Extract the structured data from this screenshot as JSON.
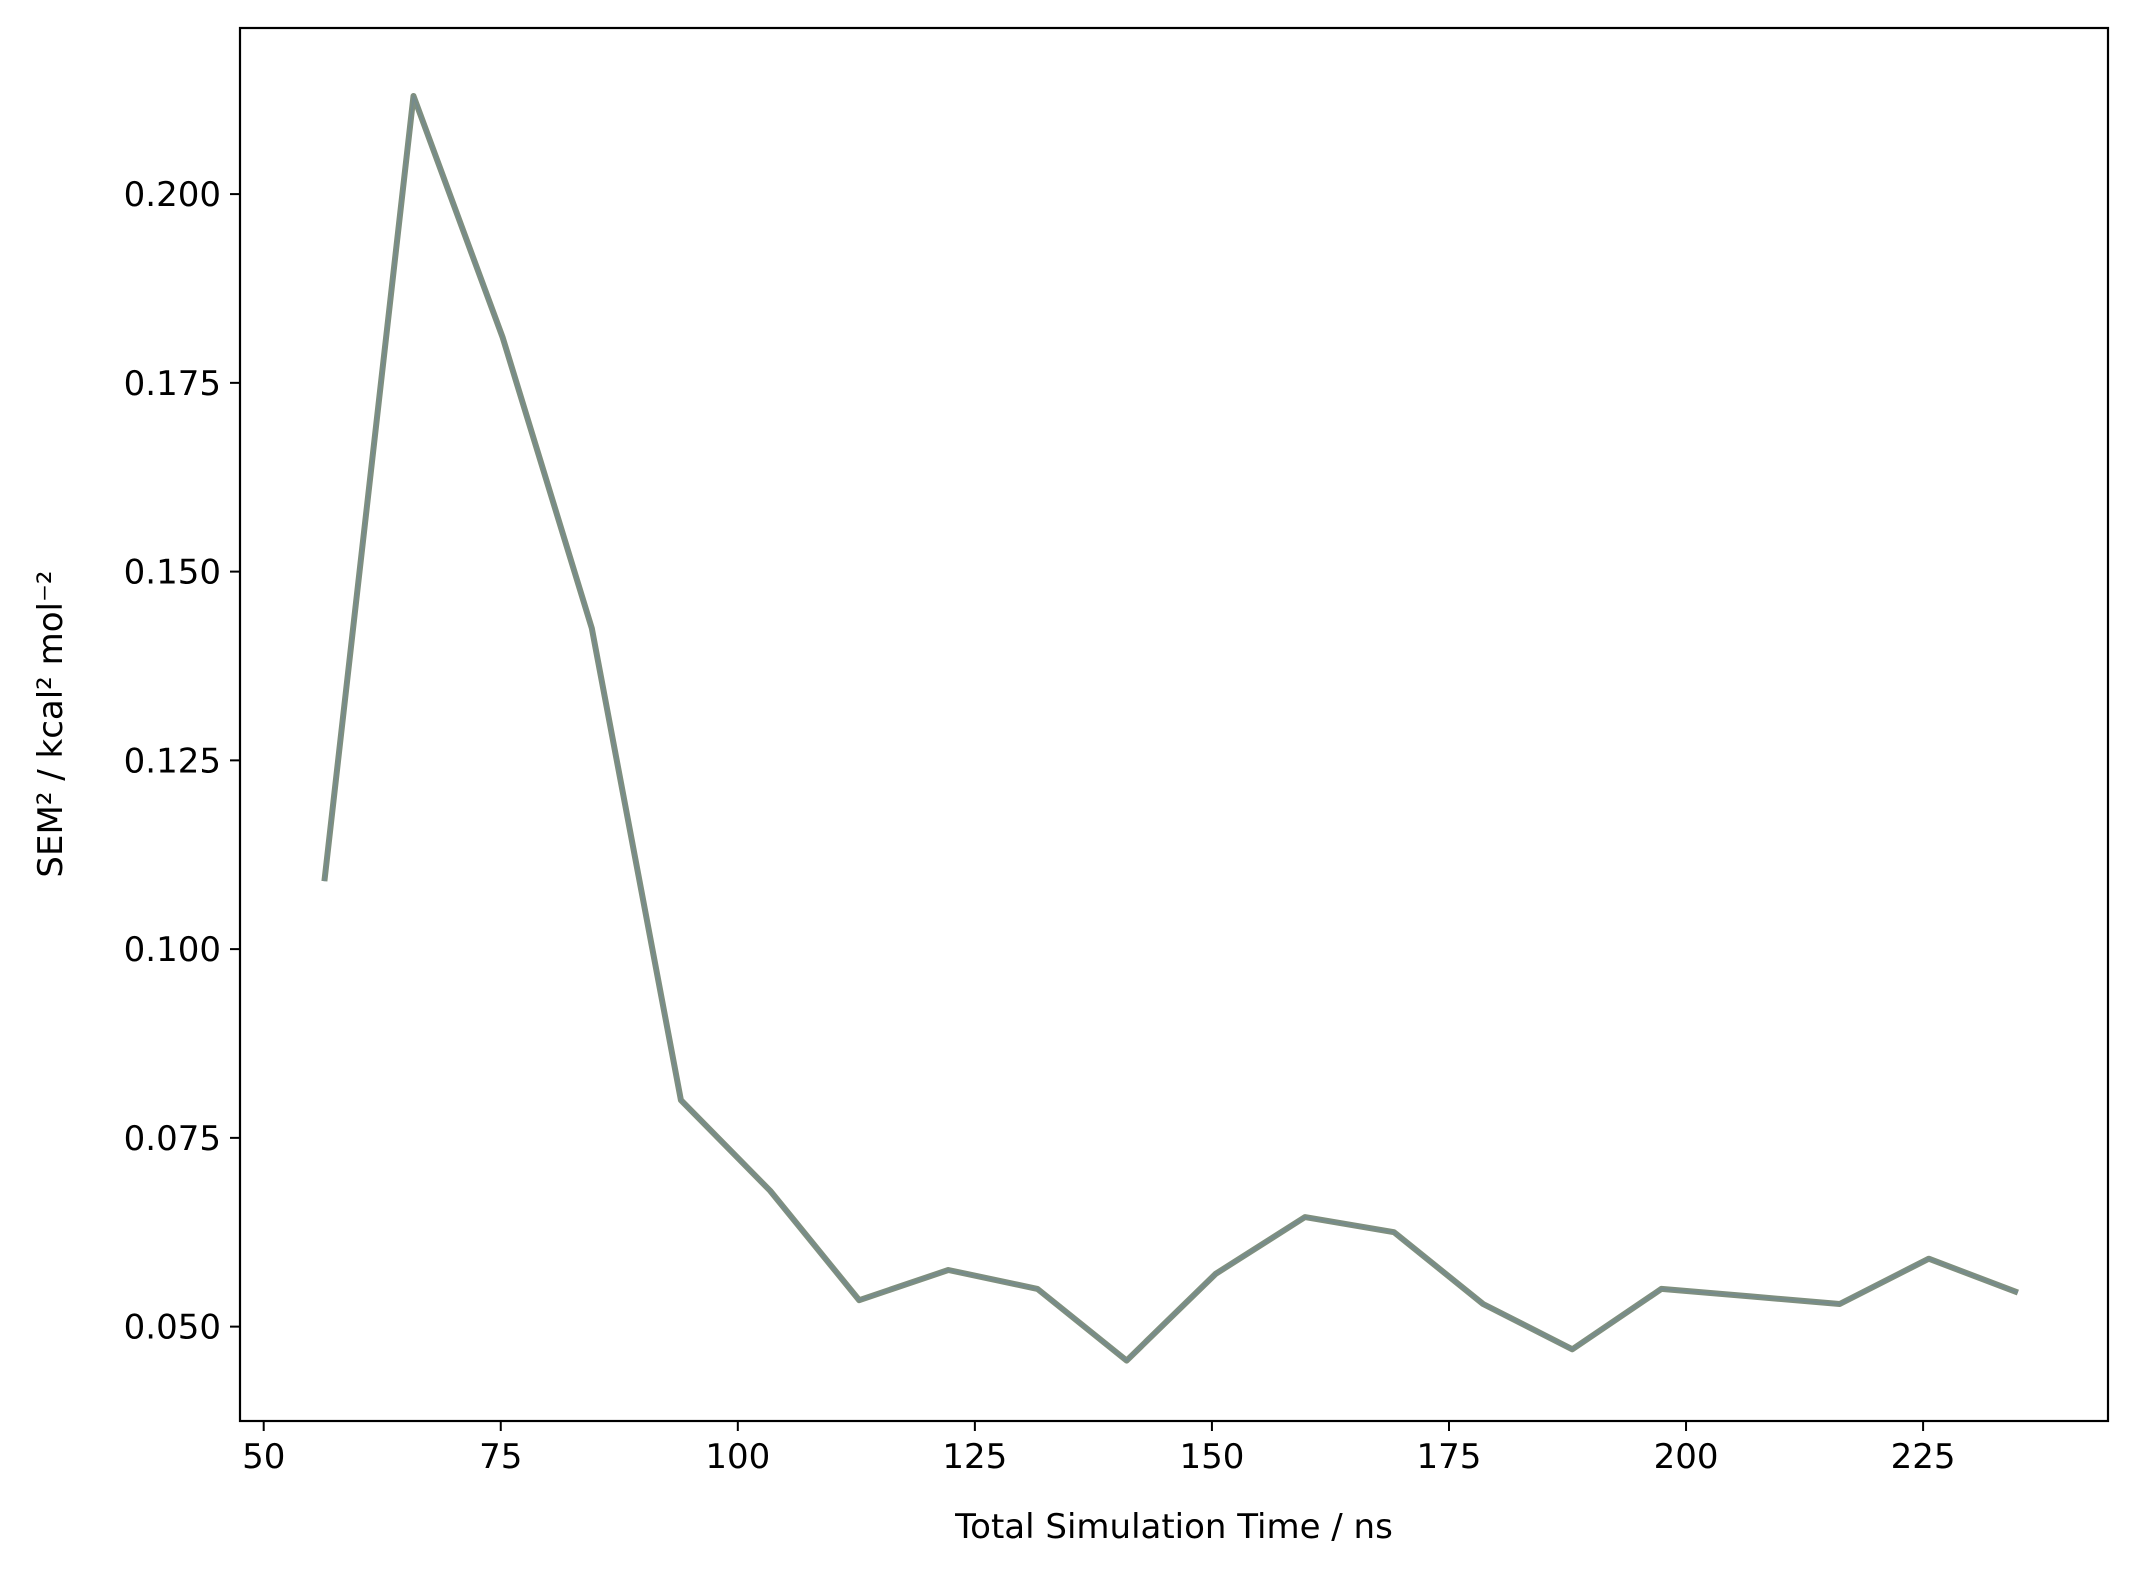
{
  "chart_data": {
    "type": "line",
    "title": "",
    "xlabel": "Total Simulation Time / ns",
    "ylabel": "SEM² / kcal² mol⁻²",
    "xlim": [
      47.5,
      244.5
    ],
    "ylim": [
      0.0375,
      0.222
    ],
    "xticks": [
      50,
      75,
      100,
      125,
      150,
      175,
      200,
      225
    ],
    "xtick_labels": [
      "50",
      "75",
      "100",
      "125",
      "150",
      "175",
      "200",
      "225"
    ],
    "yticks": [
      0.05,
      0.075,
      0.1,
      0.125,
      0.15,
      0.175,
      0.2
    ],
    "ytick_labels": [
      "0.050",
      "0.075",
      "0.100",
      "0.125",
      "0.150",
      "0.175",
      "0.200"
    ],
    "grid": false,
    "series": [
      {
        "color": "#7f8f7f",
        "x": [
          56.4,
          65.8,
          75.2,
          84.6,
          94.0,
          103.4,
          112.8,
          122.2,
          131.6,
          141.0,
          150.4,
          159.8,
          169.2,
          178.6,
          188.0,
          197.4,
          206.8,
          216.2,
          225.6,
          235.0
        ],
        "y": [
          0.109,
          0.213,
          0.181,
          0.1425,
          0.08,
          0.068,
          0.0535,
          0.0575,
          0.055,
          0.0455,
          0.057,
          0.0645,
          0.0625,
          0.053,
          0.047,
          0.055,
          0.054,
          0.053,
          0.059,
          0.0545
        ]
      }
    ]
  }
}
